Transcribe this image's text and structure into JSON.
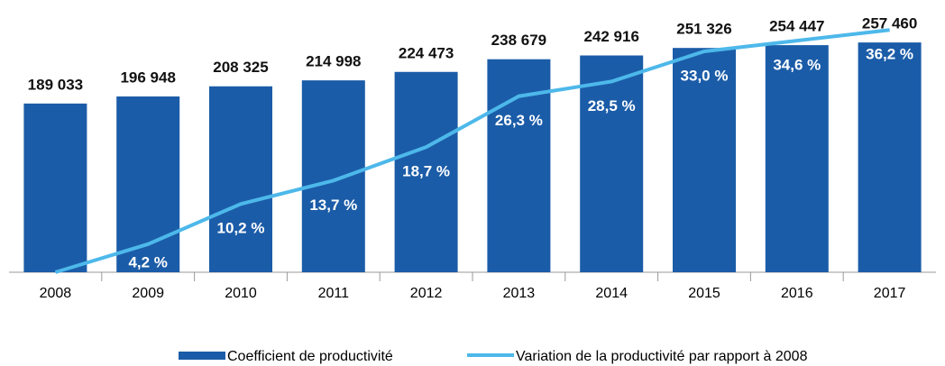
{
  "chart_data": {
    "type": "bar",
    "categories": [
      "2008",
      "2009",
      "2010",
      "2011",
      "2012",
      "2013",
      "2014",
      "2015",
      "2016",
      "2017"
    ],
    "ylim": [
      0,
      300000
    ],
    "y2lim": [
      0,
      40
    ],
    "series": [
      {
        "name": "Coefficient de productivité",
        "type": "bar",
        "color": "#1b5ca8",
        "values": [
          189033,
          196948,
          208325,
          214998,
          224473,
          238679,
          242916,
          251326,
          254447,
          257460
        ],
        "value_labels": [
          "189 033",
          "196 948",
          "208 325",
          "214 998",
          "224 473",
          "238 679",
          "242 916",
          "251 326",
          "254 447",
          "257 460"
        ]
      },
      {
        "name": "Variation de la productivité par rapport à 2008",
        "type": "line",
        "axis": "y2",
        "color": "#4db8ea",
        "values": [
          0,
          4.2,
          10.2,
          13.7,
          18.7,
          26.3,
          28.5,
          33.0,
          34.6,
          36.2
        ],
        "value_labels": [
          null,
          "4,2 %",
          "10,2 %",
          "13,7 %",
          "18,7 %",
          "26,3 %",
          "28,5 %",
          "33,0 %",
          "34,6 %",
          "36,2 %"
        ]
      }
    ]
  }
}
